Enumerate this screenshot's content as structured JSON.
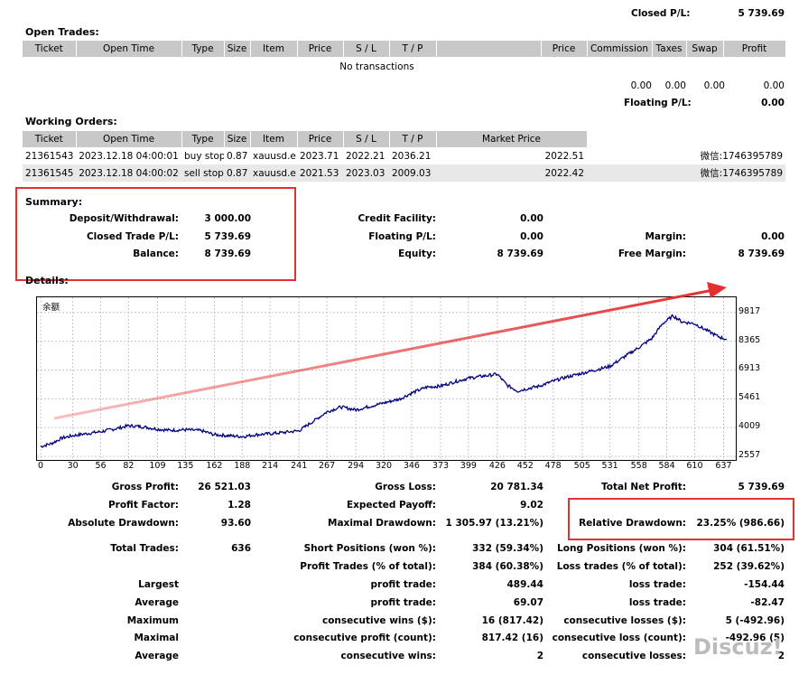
{
  "closed_pl": {
    "label": "Closed P/L:",
    "value": "5 739.69"
  },
  "open_trades": {
    "title": "Open Trades:",
    "headers": [
      "Ticket",
      "Open Time",
      "Type",
      "Size",
      "Item",
      "Price",
      "S / L",
      "T / P",
      "",
      "Price",
      "Commission",
      "Taxes",
      "Swap",
      "Profit"
    ],
    "empty": "No transactions",
    "totals": {
      "commission": "0.00",
      "taxes": "0.00",
      "swap": "0.00",
      "profit": "0.00"
    },
    "floating_label": "Floating P/L:",
    "floating_value": "0.00"
  },
  "working_orders": {
    "title": "Working Orders:",
    "headers": [
      "Ticket",
      "Open Time",
      "Type",
      "Size",
      "Item",
      "Price",
      "S / L",
      "T / P",
      "Market Price",
      "",
      ""
    ],
    "rows": [
      {
        "ticket": "21361543",
        "time": "2023.12.18 04:00:01",
        "type": "buy stop",
        "size": "0.87",
        "item": "xauusd.e",
        "price": "2023.71",
        "sl": "2022.21",
        "tp": "2036.21",
        "market": "2022.51",
        "note": "微信:1746395789"
      },
      {
        "ticket": "21361545",
        "time": "2023.12.18 04:00:02",
        "type": "sell stop",
        "size": "0.87",
        "item": "xauusd.e",
        "price": "2021.53",
        "sl": "2023.03",
        "tp": "2009.03",
        "market": "2022.42",
        "note": "微信:1746395789"
      }
    ]
  },
  "summary": {
    "title": "Summary:",
    "deposit_label": "Deposit/Withdrawal:",
    "deposit": "3 000.00",
    "closed_label": "Closed Trade P/L:",
    "closed": "5 739.69",
    "balance_label": "Balance:",
    "balance": "8 739.69",
    "credit_label": "Credit Facility:",
    "credit": "0.00",
    "floating_label": "Floating P/L:",
    "floating": "0.00",
    "equity_label": "Equity:",
    "equity": "8 739.69",
    "margin_label": "Margin:",
    "margin": "0.00",
    "free_label": "Free Margin:",
    "free": "8 739.69"
  },
  "details_title": "Details:",
  "chart_data": {
    "type": "line",
    "title": "余额",
    "y_ticks": [
      9817,
      8365,
      6913,
      5461,
      4009,
      2557
    ],
    "x_ticks": [
      0,
      30,
      56,
      82,
      109,
      135,
      162,
      188,
      214,
      241,
      267,
      294,
      320,
      346,
      373,
      399,
      426,
      452,
      478,
      505,
      531,
      558,
      584,
      610,
      637
    ],
    "xlim": [
      0,
      645
    ],
    "ylim": [
      2557,
      10400
    ],
    "series": [
      {
        "points": [
          [
            0,
            3050
          ],
          [
            10,
            3200
          ],
          [
            20,
            3480
          ],
          [
            30,
            3600
          ],
          [
            45,
            3720
          ],
          [
            56,
            3800
          ],
          [
            70,
            3950
          ],
          [
            82,
            4100
          ],
          [
            95,
            4050
          ],
          [
            109,
            3930
          ],
          [
            120,
            3870
          ],
          [
            135,
            3900
          ],
          [
            150,
            3850
          ],
          [
            162,
            3650
          ],
          [
            175,
            3600
          ],
          [
            188,
            3550
          ],
          [
            200,
            3640
          ],
          [
            214,
            3700
          ],
          [
            230,
            3780
          ],
          [
            241,
            3850
          ],
          [
            255,
            4350
          ],
          [
            267,
            4800
          ],
          [
            280,
            5050
          ],
          [
            294,
            4900
          ],
          [
            305,
            5050
          ],
          [
            320,
            5250
          ],
          [
            335,
            5450
          ],
          [
            346,
            5750
          ],
          [
            360,
            6050
          ],
          [
            373,
            6100
          ],
          [
            385,
            6300
          ],
          [
            399,
            6500
          ],
          [
            412,
            6600
          ],
          [
            426,
            6700
          ],
          [
            435,
            6150
          ],
          [
            445,
            5850
          ],
          [
            452,
            5950
          ],
          [
            465,
            6100
          ],
          [
            478,
            6350
          ],
          [
            490,
            6550
          ],
          [
            505,
            6750
          ],
          [
            520,
            6950
          ],
          [
            531,
            7100
          ],
          [
            545,
            7600
          ],
          [
            558,
            8050
          ],
          [
            570,
            8500
          ],
          [
            580,
            9250
          ],
          [
            590,
            9650
          ],
          [
            598,
            9350
          ],
          [
            610,
            9250
          ],
          [
            620,
            8950
          ],
          [
            632,
            8600
          ],
          [
            640,
            8450
          ]
        ]
      }
    ]
  },
  "stats": {
    "gross_profit": {
      "label": "Gross Profit:",
      "value": "26 521.03"
    },
    "gross_loss": {
      "label": "Gross Loss:",
      "value": "20 781.34"
    },
    "total_net": {
      "label": "Total Net Profit:",
      "value": "5 739.69"
    },
    "profit_factor": {
      "label": "Profit Factor:",
      "value": "1.28"
    },
    "expected_payoff": {
      "label": "Expected Payoff:",
      "value": "9.02"
    },
    "abs_dd": {
      "label": "Absolute Drawdown:",
      "value": "93.60"
    },
    "max_dd": {
      "label": "Maximal Drawdown:",
      "value": "1 305.97 (13.21%)"
    },
    "rel_dd": {
      "label": "Relative Drawdown:",
      "value": "23.25% (986.66)"
    },
    "total_trades": {
      "label": "Total Trades:",
      "value": "636"
    },
    "short_pos": {
      "label": "Short Positions (won %):",
      "value": "332 (59.34%)"
    },
    "long_pos": {
      "label": "Long Positions (won %):",
      "value": "304 (61.51%)"
    },
    "profit_trades": {
      "label": "Profit Trades (% of total):",
      "value": "384 (60.38%)"
    },
    "loss_trades": {
      "label": "Loss trades (% of total):",
      "value": "252 (39.62%)"
    },
    "largest": {
      "label": "Largest",
      "p_label": "profit trade:",
      "p_value": "489.44",
      "l_label": "loss trade:",
      "l_value": "-154.44"
    },
    "average": {
      "label": "Average",
      "p_label": "profit trade:",
      "p_value": "69.07",
      "l_label": "loss trade:",
      "l_value": "-82.47"
    },
    "maximum": {
      "label": "Maximum",
      "p_label": "consecutive wins ($):",
      "p_value": "16 (817.42)",
      "l_label": "consecutive losses ($):",
      "l_value": "5 (-492.96)"
    },
    "maximal": {
      "label": "Maximal",
      "p_label": "consecutive profit (count):",
      "p_value": "817.42 (16)",
      "l_label": "consecutive loss (count):",
      "l_value": "-492.96 (5)"
    },
    "average2": {
      "label": "Average",
      "p_label": "consecutive wins:",
      "p_value": "2",
      "l_label": "consecutive losses:",
      "l_value": "2"
    }
  },
  "watermark": "Discuz!"
}
